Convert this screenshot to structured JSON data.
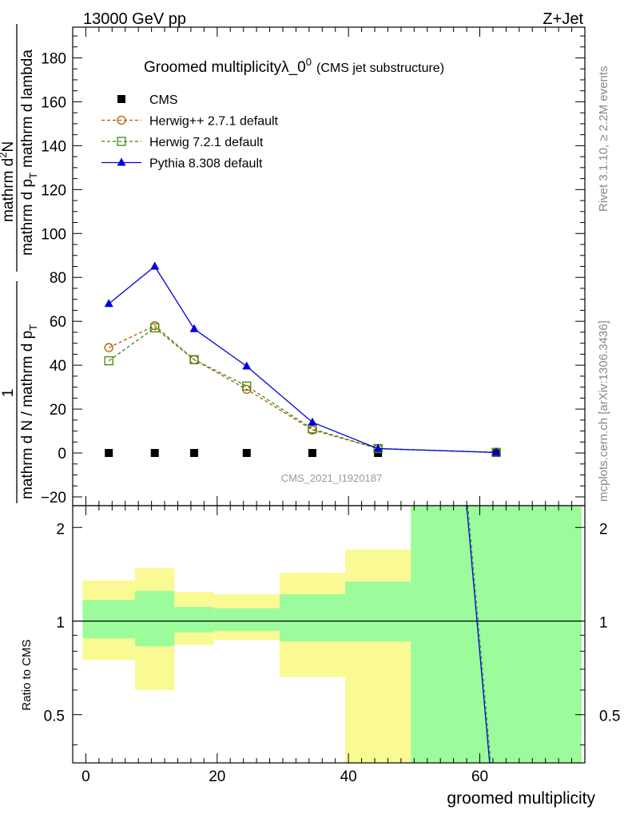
{
  "header": {
    "left": "13000 GeV pp",
    "right": "Z+Jet"
  },
  "side": {
    "rivet": "Rivet 3.1.10, ≥ 2.2M events",
    "mcplots": "mcplots.cern.ch [arXiv:1306.3436]"
  },
  "chart_data": [
    {
      "type": "line",
      "title_main": "Groomed multiplicityλ_0",
      "title_sup": "0",
      "title_sub": "(CMS jet substructure)",
      "ylabel_num": "1",
      "ylabel_den": "mathrm d N / mathrm d p",
      "ylabel_den_sub": "T",
      "ylabel_num2": "mathrm d",
      "ylabel_num2_sup": "2",
      "ylabel_num2_tail": "N",
      "ylabel_den2": "mathrm d p",
      "ylabel_den2_sub": "T",
      "ylabel_den2_tail": "mathrm d lambda",
      "watermark": "CMS_2021_I1920187",
      "xlim": [
        -2,
        76
      ],
      "ylim": [
        -24,
        194
      ],
      "yticks": [
        "−20",
        "0",
        "20",
        "40",
        "60",
        "80",
        "100",
        "120",
        "140",
        "160",
        "180"
      ],
      "ytick_values": [
        -20,
        0,
        20,
        40,
        60,
        80,
        100,
        120,
        140,
        160,
        180
      ],
      "legend_position": "top-left",
      "series": [
        {
          "name": "CMS",
          "color": "#000000",
          "marker": "square-filled",
          "x": [
            3.5,
            10.5,
            16.5,
            24.5,
            34.5,
            44.5,
            62.5
          ],
          "y": [
            0,
            0,
            0,
            0,
            0,
            0,
            0
          ]
        },
        {
          "name": "Herwig++ 2.7.1 default",
          "color": "#b35900",
          "marker": "circle-open",
          "dash": true,
          "x": [
            3.5,
            10.5,
            16.5,
            24.5,
            34.5,
            44.5,
            62.5
          ],
          "y": [
            48,
            58,
            42.5,
            29,
            10.5,
            2,
            0.3
          ]
        },
        {
          "name": "Herwig 7.2.1 default",
          "color": "#3a8a0a",
          "marker": "square-open",
          "dash": true,
          "x": [
            3.5,
            10.5,
            16.5,
            24.5,
            34.5,
            44.5,
            62.5
          ],
          "y": [
            42,
            57,
            42.5,
            30.5,
            11,
            2,
            0.3
          ]
        },
        {
          "name": "Pythia 8.308 default",
          "color": "#0000dd",
          "marker": "triangle-filled",
          "x": [
            3.5,
            10.5,
            16.5,
            24.5,
            34.5,
            44.5,
            62.5
          ],
          "y": [
            68,
            85,
            56.5,
            39.5,
            14,
            2,
            0.2
          ]
        }
      ]
    },
    {
      "type": "area",
      "ylabel": "Ratio to CMS",
      "xlabel": "groomed multiplicity",
      "xlim": [
        -2,
        76
      ],
      "ylim": [
        0.35,
        2.35
      ],
      "scale": "log",
      "yticks": [
        "0.5",
        "1",
        "2"
      ],
      "ytick_values": [
        0.5,
        1,
        2
      ],
      "xticks": [
        "0",
        "20",
        "40",
        "60"
      ],
      "xtick_values": [
        0,
        20,
        40,
        60
      ],
      "reference_line": 1,
      "bands": [
        {
          "x0": -0.5,
          "x1": 7.5,
          "inner": [
            0.88,
            1.17
          ],
          "outer": [
            0.75,
            1.35
          ]
        },
        {
          "x0": 7.5,
          "x1": 13.5,
          "inner": [
            0.83,
            1.25
          ],
          "outer": [
            0.6,
            1.48
          ]
        },
        {
          "x0": 13.5,
          "x1": 19.5,
          "inner": [
            0.92,
            1.11
          ],
          "outer": [
            0.84,
            1.24
          ]
        },
        {
          "x0": 19.5,
          "x1": 29.5,
          "inner": [
            0.93,
            1.1
          ],
          "outer": [
            0.87,
            1.22
          ]
        },
        {
          "x0": 29.5,
          "x1": 39.5,
          "inner": [
            0.86,
            1.22
          ],
          "outer": [
            0.66,
            1.43
          ]
        },
        {
          "x0": 39.5,
          "x1": 49.5,
          "inner": [
            0.86,
            1.34
          ],
          "outer": [
            0.3,
            1.7
          ]
        },
        {
          "x0": 49.5,
          "x1": 75.5,
          "inner": [
            0.3,
            2.5
          ],
          "outer": [
            0.3,
            2.5
          ]
        }
      ],
      "band_colors": {
        "inner": "#9cfc9c",
        "outer": "#fafa94"
      },
      "ratio_line": {
        "color": "#0000dd",
        "x": [
          58,
          61.5
        ],
        "y": [
          2.5,
          0.3
        ]
      }
    }
  ]
}
